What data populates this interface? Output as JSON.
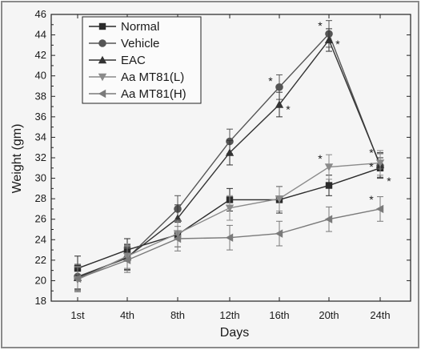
{
  "chart_data": {
    "type": "line",
    "title": "",
    "xlabel": "Days",
    "ylabel": "Weight (gm)",
    "categories": [
      "1st",
      "4th",
      "8th",
      "12th",
      "16th",
      "20th",
      "24th"
    ],
    "ylim": [
      18,
      46
    ],
    "yticks": [
      18,
      20,
      22,
      24,
      26,
      28,
      30,
      32,
      34,
      36,
      38,
      40,
      42,
      44,
      46
    ],
    "grid": false,
    "legend_position": "top-left",
    "series": [
      {
        "name": "Normal",
        "marker": "square",
        "color": "#2b2b2b",
        "values": [
          21.2,
          23.0,
          24.5,
          27.9,
          27.9,
          29.3,
          31.0
        ],
        "errors": [
          1.2,
          1.1,
          1.2,
          1.1,
          1.3,
          1.0,
          1.0
        ]
      },
      {
        "name": "Vehicle",
        "marker": "circle",
        "color": "#555555",
        "values": [
          20.4,
          22.2,
          27.0,
          33.6,
          38.9,
          44.1,
          31.2
        ],
        "errors": [
          1.2,
          1.2,
          1.3,
          1.2,
          1.2,
          1.3,
          1.2
        ]
      },
      {
        "name": "EAC",
        "marker": "triangle-up",
        "color": "#333333",
        "values": [
          20.3,
          22.3,
          26.1,
          32.5,
          37.2,
          43.5,
          31.3
        ],
        "errors": [
          1.2,
          1.2,
          1.3,
          1.2,
          1.2,
          1.1,
          1.2
        ]
      },
      {
        "name": "Aa MT81(L)",
        "marker": "triangle-down",
        "color": "#8a8a8a",
        "values": [
          20.1,
          22.4,
          24.6,
          27.1,
          28.0,
          31.1,
          31.5
        ],
        "errors": [
          1.2,
          1.2,
          1.3,
          1.2,
          1.2,
          1.2,
          1.2
        ]
      },
      {
        "name": "Aa MT81(H)",
        "marker": "triangle-left",
        "color": "#7a7a7a",
        "values": [
          20.2,
          22.0,
          24.1,
          24.2,
          24.6,
          26.0,
          27.0
        ],
        "errors": [
          1.2,
          1.2,
          1.2,
          1.2,
          1.2,
          1.2,
          1.2
        ]
      }
    ],
    "annotations": [
      {
        "text": "*",
        "x": "16th",
        "y": 39.6,
        "side": "left"
      },
      {
        "text": "*",
        "x": "16th",
        "y": 36.8,
        "side": "right"
      },
      {
        "text": "*",
        "x": "20th",
        "y": 45.0,
        "side": "left"
      },
      {
        "text": "*",
        "x": "20th",
        "y": 43.2,
        "side": "right"
      },
      {
        "text": "*",
        "x": "20th",
        "y": 32.0,
        "side": "left"
      },
      {
        "text": "*",
        "x": "24th",
        "y": 32.6,
        "side": "left"
      },
      {
        "text": "*",
        "x": "24th",
        "y": 31.2,
        "side": "left"
      },
      {
        "text": "*",
        "x": "24th",
        "y": 29.8,
        "side": "right"
      },
      {
        "text": "*",
        "x": "24th",
        "y": 28.0,
        "side": "left"
      }
    ]
  }
}
